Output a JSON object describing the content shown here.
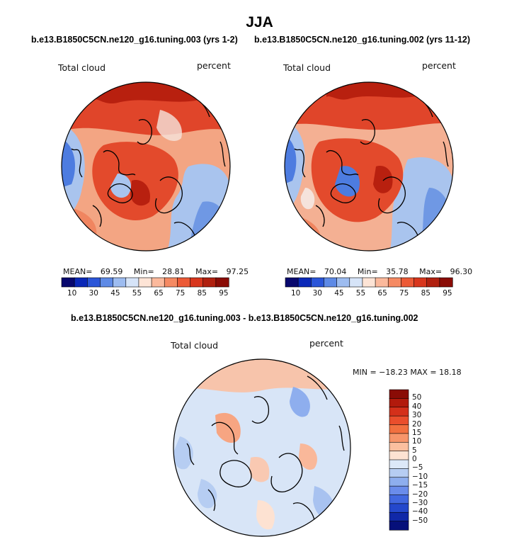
{
  "title": "JJA",
  "panels": [
    {
      "case": "b.e13.B1850C5CN.ne120_g16.tuning.003 (yrs 1-2)",
      "variable": "Total cloud",
      "units": "percent",
      "mean_label": "MEAN=",
      "mean": "69.59",
      "min_label": "Min=",
      "min": "28.81",
      "max_label": "Max=",
      "max": "97.25"
    },
    {
      "case": "b.e13.B1850C5CN.ne120_g16.tuning.002 (yrs 11-12)",
      "variable": "Total cloud",
      "units": "percent",
      "mean_label": "MEAN=",
      "mean": "70.04",
      "min_label": "Min=",
      "min": "35.78",
      "max_label": "Max=",
      "max": "96.30"
    }
  ],
  "colorbar": {
    "labels": [
      "10",
      "30",
      "45",
      "55",
      "65",
      "75",
      "85",
      "95"
    ],
    "colors": [
      "#08086e",
      "#0a28b8",
      "#2a55d8",
      "#5e8ae6",
      "#9dbcf0",
      "#d6e4f8",
      "#fde4d6",
      "#fbb99c",
      "#f58a63",
      "#ec5a36",
      "#d8361d",
      "#b0200f",
      "#8a0c06"
    ]
  },
  "difference": {
    "title": "b.e13.B1850C5CN.ne120_g16.tuning.003 - b.e13.B1850C5CN.ne120_g16.tuning.002",
    "variable": "Total cloud",
    "units": "percent",
    "min_max_text": "MIN = −18.23 MAX =  18.18",
    "levels": [
      "50",
      "40",
      "30",
      "20",
      "15",
      "10",
      "5",
      "0",
      "−5",
      "−10",
      "−15",
      "−20",
      "−30",
      "−40",
      "−50"
    ],
    "colors": [
      "#8a0c06",
      "#b21a0c",
      "#d4301a",
      "#ea4e2c",
      "#f2703f",
      "#f7956a",
      "#fbbf9f",
      "#fde2d2",
      "#dce8f8",
      "#b6cdf2",
      "#8eaeee",
      "#6a8ceb",
      "#4268e0",
      "#2448cc",
      "#1028a8",
      "#06107a"
    ]
  },
  "map_colors": {
    "high": "#b8200f",
    "mid_high": "#e34a2c",
    "mid": "#f7a582",
    "neutral": "#f5e3dc",
    "low": "#a9c4ee",
    "lower": "#4d7ce0",
    "coast": "#000000"
  }
}
